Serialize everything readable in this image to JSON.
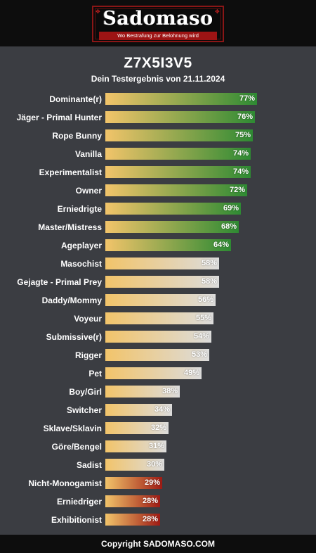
{
  "header": {
    "logo_title": "Sadomaso",
    "logo_tagline": "Wo Bestrafung zur Belohnung wird"
  },
  "result": {
    "code": "Z7X5I3V5",
    "subtitle": "Dein Testergebnis von 21.11.2024"
  },
  "colors": {
    "background": "#3b3d42",
    "gradient_start": "#f2c46a",
    "green_end": "#2e8a33",
    "light_end": "#dcdcdc",
    "red_end": "#9e1a14"
  },
  "chart_data": {
    "type": "bar",
    "orientation": "horizontal",
    "categories": [
      "Dominante(r)",
      "Jäger - Primal Hunter",
      "Rope Bunny",
      "Vanilla",
      "Experimentalist",
      "Owner",
      "Erniedrigte",
      "Master/Mistress",
      "Ageplayer",
      "Masochist",
      "Gejagte - Primal Prey",
      "Daddy/Mommy",
      "Voyeur",
      "Submissive(r)",
      "Rigger",
      "Pet",
      "Boy/Girl",
      "Switcher",
      "Sklave/Sklavin",
      "Göre/Bengel",
      "Sadist",
      "Nicht-Monogamist",
      "Erniedriger",
      "Exhibitionist"
    ],
    "values": [
      77,
      76,
      75,
      74,
      74,
      72,
      69,
      68,
      64,
      58,
      58,
      56,
      55,
      54,
      53,
      49,
      38,
      34,
      32,
      31,
      30,
      29,
      28,
      28
    ],
    "labels": [
      "77%",
      "76%",
      "75%",
      "74%",
      "74%",
      "72%",
      "69%",
      "68%",
      "64%",
      "58%",
      "58%",
      "56%",
      "55%",
      "54%",
      "53%",
      "49%",
      "38%",
      "34%",
      "32%",
      "31%",
      "30%",
      "29%",
      "28%",
      "28%"
    ],
    "bar_color_group": [
      "green",
      "green",
      "green",
      "green",
      "green",
      "green",
      "green",
      "green",
      "green",
      "light",
      "light",
      "light",
      "light",
      "light",
      "light",
      "light",
      "light",
      "light",
      "light",
      "light",
      "light",
      "red",
      "red",
      "red"
    ],
    "xlim": [
      0,
      100
    ]
  },
  "footer": {
    "copyright": "Copyright SADOMASO.COM"
  }
}
